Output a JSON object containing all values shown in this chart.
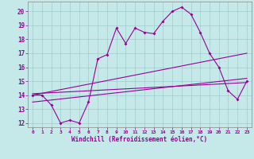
{
  "xlabel": "Windchill (Refroidissement éolien,°C)",
  "bg_color": "#c5e8e8",
  "grid_color": "#a0cccc",
  "line_color": "#990099",
  "xlim": [
    -0.5,
    23.5
  ],
  "ylim": [
    11.7,
    20.7
  ],
  "yticks": [
    12,
    13,
    14,
    15,
    16,
    17,
    18,
    19,
    20
  ],
  "xticks": [
    0,
    1,
    2,
    3,
    4,
    5,
    6,
    7,
    8,
    9,
    10,
    11,
    12,
    13,
    14,
    15,
    16,
    17,
    18,
    19,
    20,
    21,
    22,
    23
  ],
  "series1_x": [
    0,
    1,
    2,
    3,
    4,
    5,
    6,
    7,
    8,
    9,
    10,
    11,
    12,
    13,
    14,
    15,
    16,
    17,
    18,
    19,
    20,
    21,
    22,
    23
  ],
  "series1_y": [
    14.0,
    14.0,
    13.3,
    12.0,
    12.2,
    12.0,
    13.5,
    16.6,
    16.9,
    18.8,
    17.7,
    18.8,
    18.5,
    18.4,
    19.3,
    20.0,
    20.3,
    19.8,
    18.5,
    17.0,
    16.0,
    14.3,
    13.7,
    15.0
  ],
  "series2_x": [
    0,
    23
  ],
  "series2_y": [
    14.0,
    17.0
  ],
  "series3_x": [
    0,
    23
  ],
  "series3_y": [
    13.5,
    15.2
  ],
  "series4_x": [
    0,
    23
  ],
  "series4_y": [
    14.1,
    14.9
  ]
}
